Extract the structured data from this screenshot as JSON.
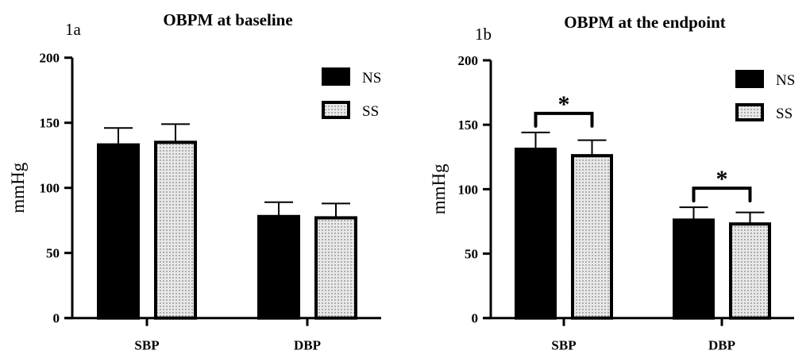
{
  "chart_data": [
    {
      "type": "bar",
      "panel_label": "1a",
      "title": "OBPM  at baseline",
      "xlabel": "",
      "ylabel": "mmHg",
      "ylim": [
        0,
        200
      ],
      "yticks": [
        "0",
        "50",
        "100",
        "150",
        "200"
      ],
      "categories": [
        "SBP",
        "DBP"
      ],
      "legend": {
        "placement": "top-right"
      },
      "series": [
        {
          "name": "NS",
          "values": [
            133,
            78
          ],
          "error": [
            13,
            11
          ],
          "fill": "#000000"
        },
        {
          "name": "SS",
          "values": [
            135,
            77
          ],
          "error": [
            14,
            11
          ],
          "fill": "dotted"
        }
      ],
      "annotations": []
    },
    {
      "type": "bar",
      "panel_label": "1b",
      "title": "OBPM  at  the endpoint",
      "xlabel": "",
      "ylabel": "mmHg",
      "ylim": [
        0,
        200
      ],
      "yticks": [
        "0",
        "50",
        "100",
        "150",
        "200"
      ],
      "categories": [
        "SBP",
        "DBP"
      ],
      "legend": {
        "placement": "top-right"
      },
      "series": [
        {
          "name": "NS",
          "values": [
            131,
            76
          ],
          "error": [
            13,
            10
          ],
          "fill": "#000000"
        },
        {
          "name": "SS",
          "values": [
            126,
            73
          ],
          "error": [
            12,
            9
          ],
          "fill": "dotted"
        }
      ],
      "annotations": [
        {
          "category": "SBP",
          "text": "*",
          "meaning": "significant difference NS vs SS"
        },
        {
          "category": "DBP",
          "text": "*",
          "meaning": "significant difference NS vs SS"
        }
      ]
    }
  ]
}
